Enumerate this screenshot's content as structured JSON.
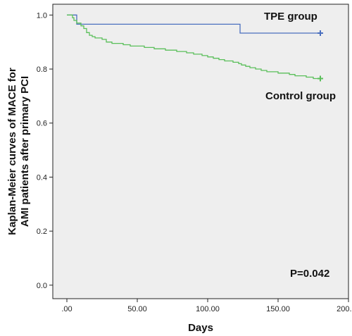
{
  "chart_data": {
    "type": "line",
    "subtype": "kaplan-meier step",
    "title": "",
    "xlabel": "Days",
    "ylabel_lines": [
      "Kaplan-Meier curves of MACE for",
      "AMI patients after primary PCI"
    ],
    "xlim": [
      -10,
      200
    ],
    "ylim": [
      -0.05,
      1.04
    ],
    "x_ticks": [
      0,
      50,
      100,
      150,
      200
    ],
    "x_tick_labels": [
      ".00",
      "50.00",
      "100.00",
      "150.00",
      "200.00"
    ],
    "y_ticks": [
      0.0,
      0.2,
      0.4,
      0.6,
      0.8,
      1.0
    ],
    "y_tick_labels": [
      "0.0",
      "0.2",
      "0.4",
      "0.6",
      "0.8",
      "1.0"
    ],
    "grid": false,
    "background": "#eeeeee",
    "series": [
      {
        "name": "TPE group",
        "color": "#4a6fbf",
        "censor_x": 180,
        "x": [
          0,
          7,
          7,
          123,
          123,
          180
        ],
        "y": [
          1.0,
          1.0,
          0.966,
          0.966,
          0.933,
          0.933
        ]
      },
      {
        "name": "Control group",
        "color": "#5abf5a",
        "censor_x": 180,
        "x": [
          0,
          4,
          5,
          7,
          10,
          12,
          14,
          16,
          18,
          20,
          25,
          28,
          32,
          40,
          45,
          55,
          62,
          70,
          78,
          85,
          90,
          96,
          100,
          104,
          108,
          112,
          118,
          122,
          124,
          127,
          130,
          134,
          138,
          142,
          146,
          150,
          154,
          158,
          162,
          166,
          170,
          175,
          180
        ],
        "y": [
          1.0,
          0.99,
          0.98,
          0.97,
          0.96,
          0.95,
          0.935,
          0.925,
          0.92,
          0.915,
          0.91,
          0.9,
          0.895,
          0.89,
          0.885,
          0.88,
          0.875,
          0.87,
          0.865,
          0.86,
          0.855,
          0.85,
          0.845,
          0.84,
          0.835,
          0.83,
          0.825,
          0.82,
          0.815,
          0.81,
          0.805,
          0.8,
          0.795,
          0.79,
          0.79,
          0.785,
          0.785,
          0.78,
          0.775,
          0.775,
          0.77,
          0.765,
          0.765
        ]
      }
    ],
    "annotations": {
      "tpe_label": "TPE group",
      "control_label": "Control group",
      "p_value": "P=0.042"
    }
  }
}
